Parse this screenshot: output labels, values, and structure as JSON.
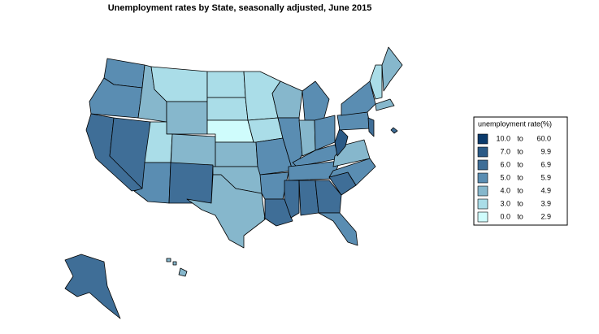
{
  "title": "Unemployment rates by State, seasonally adjusted,  June  2015",
  "legend": {
    "title": "unemployment rate(%)",
    "connector": "to",
    "items": [
      {
        "low": "10.0",
        "high": "60.0",
        "color": "#0b3a6b"
      },
      {
        "low": "7.0",
        "high": "9.9",
        "color": "#2b5a86"
      },
      {
        "low": "6.0",
        "high": "6.9",
        "color": "#3f6e97"
      },
      {
        "low": "5.0",
        "high": "5.9",
        "color": "#5a8db2"
      },
      {
        "low": "4.0",
        "high": "4.9",
        "color": "#86b7cc"
      },
      {
        "low": "3.0",
        "high": "3.9",
        "color": "#aadde8"
      },
      {
        "low": "0.0",
        "high": "2.9",
        "color": "#cffcfc"
      }
    ]
  }
}
